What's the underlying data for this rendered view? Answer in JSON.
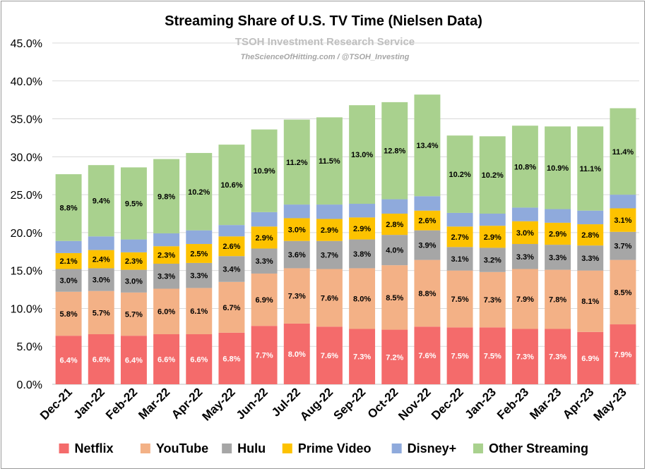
{
  "chart_data": {
    "type": "bar",
    "stacked": true,
    "title": "Streaming Share of U.S. TV Time (Nielsen Data)",
    "subtitle": "TSOH Investment Research Service",
    "source_note": "TheScienceOfHitting.com / @TSOH_Investing",
    "categories": [
      "Dec-21",
      "Jan-22",
      "Feb-22",
      "Mar-22",
      "Apr-22",
      "May-22",
      "Jun-22",
      "Jul-22",
      "Aug-22",
      "Sep-22",
      "Oct-22",
      "Nov-22",
      "Dec-22",
      "Jan-23",
      "Feb-23",
      "Mar-23",
      "Apr-23",
      "May-23"
    ],
    "y_ticks": [
      "0.0%",
      "5.0%",
      "10.0%",
      "15.0%",
      "20.0%",
      "25.0%",
      "30.0%",
      "35.0%",
      "40.0%",
      "45.0%"
    ],
    "ylim": [
      0,
      45
    ],
    "grid": true,
    "legend_position": "bottom",
    "series": [
      {
        "name": "Netflix",
        "color": "#f46b6b",
        "values": [
          6.4,
          6.6,
          6.4,
          6.6,
          6.6,
          6.8,
          7.7,
          8.0,
          7.6,
          7.3,
          7.2,
          7.6,
          7.5,
          7.5,
          7.3,
          7.3,
          6.9,
          7.9
        ],
        "labels": [
          "6.4%",
          "6.6%",
          "6.4%",
          "6.6%",
          "6.6%",
          "6.8%",
          "7.7%",
          "8.0%",
          "7.6%",
          "7.3%",
          "7.2%",
          "7.6%",
          "7.5%",
          "7.5%",
          "7.3%",
          "7.3%",
          "6.9%",
          "7.9%"
        ]
      },
      {
        "name": "YouTube",
        "color": "#f3b186",
        "values": [
          5.8,
          5.7,
          5.7,
          6.0,
          6.1,
          6.7,
          6.9,
          7.3,
          7.6,
          8.0,
          8.5,
          8.8,
          7.5,
          7.3,
          7.9,
          7.8,
          8.1,
          8.5
        ],
        "labels": [
          "5.8%",
          "5.7%",
          "5.7%",
          "6.0%",
          "6.1%",
          "6.7%",
          "6.9%",
          "7.3%",
          "7.6%",
          "8.0%",
          "8.5%",
          "8.8%",
          "7.5%",
          "7.3%",
          "7.9%",
          "7.8%",
          "8.1%",
          "8.5%"
        ]
      },
      {
        "name": "Hulu",
        "color": "#a6a6a6",
        "values": [
          3.0,
          3.0,
          3.0,
          3.3,
          3.3,
          3.4,
          3.3,
          3.6,
          3.7,
          3.8,
          4.0,
          3.9,
          3.1,
          3.2,
          3.3,
          3.3,
          3.3,
          3.7
        ],
        "labels": [
          "3.0%",
          "3.0%",
          "3.0%",
          "3.3%",
          "3.3%",
          "3.4%",
          "3.3%",
          "3.6%",
          "3.7%",
          "3.8%",
          "4.0%",
          "3.9%",
          "3.1%",
          "3.2%",
          "3.3%",
          "3.3%",
          "3.3%",
          "3.7%"
        ]
      },
      {
        "name": "Prime Video",
        "color": "#fdc200",
        "values": [
          2.1,
          2.4,
          2.3,
          2.3,
          2.5,
          2.6,
          2.9,
          3.0,
          2.9,
          2.9,
          2.8,
          2.6,
          2.7,
          2.9,
          3.0,
          2.9,
          2.8,
          3.1
        ],
        "labels": [
          "2.1%",
          "2.4%",
          "2.3%",
          "2.3%",
          "2.5%",
          "2.6%",
          "2.9%",
          "3.0%",
          "2.9%",
          "2.9%",
          "2.8%",
          "2.6%",
          "2.7%",
          "2.9%",
          "3.0%",
          "2.9%",
          "2.8%",
          "3.1%"
        ]
      },
      {
        "name": "Disney+",
        "color": "#8faadc",
        "values": [
          1.6,
          1.8,
          1.7,
          1.7,
          1.8,
          1.5,
          1.9,
          1.8,
          1.9,
          1.8,
          1.9,
          1.9,
          1.8,
          1.6,
          1.8,
          1.8,
          1.8,
          1.8
        ],
        "labels": []
      },
      {
        "name": "Other Streaming",
        "color": "#a9d18e",
        "values": [
          8.8,
          9.4,
          9.5,
          9.8,
          10.2,
          10.6,
          10.9,
          11.2,
          11.5,
          13.0,
          12.8,
          13.4,
          10.2,
          10.2,
          10.8,
          10.9,
          11.1,
          11.4
        ],
        "labels": [
          "8.8%",
          "9.4%",
          "9.5%",
          "9.8%",
          "10.2%",
          "10.6%",
          "10.9%",
          "11.2%",
          "11.5%",
          "13.0%",
          "12.8%",
          "13.4%",
          "10.2%",
          "10.2%",
          "10.8%",
          "10.9%",
          "11.1%",
          "11.4%"
        ]
      }
    ]
  }
}
